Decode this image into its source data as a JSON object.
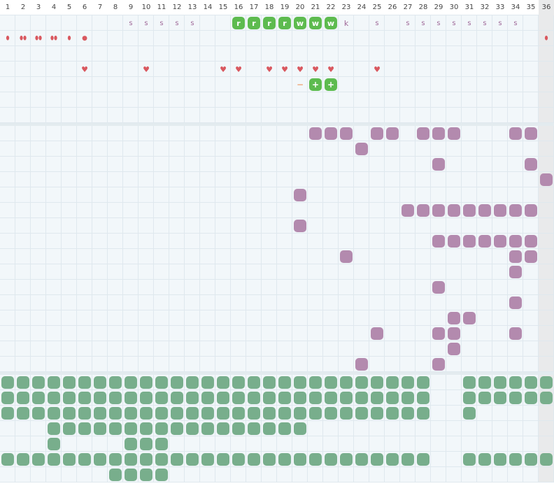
{
  "columns": [
    "1",
    "2",
    "3",
    "4",
    "5",
    "6",
    "7",
    "8",
    "9",
    "10",
    "11",
    "12",
    "13",
    "14",
    "15",
    "16",
    "17",
    "18",
    "19",
    "20",
    "21",
    "22",
    "23",
    "24",
    "25",
    "26",
    "27",
    "28",
    "29",
    "30",
    "31",
    "32",
    "33",
    "34",
    "35",
    "36"
  ],
  "colors": {
    "background": "#f2f7fa",
    "grid_line": "#dfe8ee",
    "header_bg": "#ffffff",
    "last_column_bg": "#e9eaeb",
    "separator": "#e3ebef",
    "red_symbol": "#d9585f",
    "green_tile": "#5dbb4f",
    "purple_blob": "#b38aae",
    "teal_blob": "#78ae8c",
    "s_letter": "#a06a99"
  },
  "sections": [
    {
      "name": "symbols",
      "rows": [
        {
          "s": [
            9,
            10,
            11,
            12,
            13,
            25,
            27,
            28,
            29,
            30,
            31,
            32,
            33,
            34
          ],
          "r": [
            16,
            17,
            18,
            19
          ],
          "w": [
            20,
            21,
            22
          ],
          "k": [
            23
          ]
        },
        {
          "drops": {
            "1": 1,
            "2": 3,
            "3": 3,
            "4": 3,
            "5": 1,
            "36": 1
          },
          "dot": [
            6
          ]
        },
        {},
        {
          "heart": [
            6,
            10,
            15,
            16,
            18,
            19,
            20,
            21,
            22,
            25
          ]
        },
        {
          "minus": [
            20
          ],
          "plus": [
            21,
            22
          ]
        },
        {},
        {}
      ]
    },
    {
      "name": "purple",
      "rows": [
        [
          21,
          22,
          23,
          25,
          26,
          28,
          29,
          30,
          34,
          35
        ],
        [
          24
        ],
        [
          29,
          35
        ],
        [
          36
        ],
        [
          20
        ],
        [
          27,
          28,
          29,
          30,
          31,
          32,
          33,
          34,
          35
        ],
        [
          20
        ],
        [
          29,
          30,
          31,
          32,
          33,
          34,
          35
        ],
        [
          23,
          34,
          35
        ],
        [
          34
        ],
        [
          29
        ],
        [
          34
        ],
        [
          30,
          31
        ],
        [
          25,
          29,
          30,
          34
        ],
        [
          30
        ],
        [
          24,
          29
        ]
      ]
    },
    {
      "name": "teal",
      "rows": [
        [
          1,
          2,
          3,
          4,
          5,
          6,
          7,
          8,
          9,
          10,
          11,
          12,
          13,
          14,
          15,
          16,
          17,
          18,
          19,
          20,
          21,
          22,
          23,
          24,
          25,
          26,
          27,
          28,
          31,
          32,
          33,
          34,
          35,
          36
        ],
        [
          1,
          2,
          3,
          4,
          5,
          6,
          7,
          8,
          9,
          10,
          11,
          12,
          13,
          14,
          15,
          16,
          17,
          18,
          19,
          20,
          21,
          22,
          23,
          24,
          25,
          26,
          27,
          28,
          31,
          32,
          33,
          34,
          35,
          36
        ],
        [
          1,
          2,
          3,
          4,
          5,
          6,
          7,
          8,
          9,
          10,
          11,
          12,
          13,
          14,
          15,
          16,
          17,
          18,
          19,
          20,
          21,
          22,
          23,
          24,
          25,
          26,
          27,
          28,
          31
        ],
        [
          4,
          5,
          6,
          7,
          8,
          9,
          10,
          11,
          12,
          13,
          14,
          15,
          16,
          17,
          18,
          19,
          20
        ],
        [
          4,
          9,
          10,
          11
        ],
        [
          1,
          2,
          3,
          4,
          5,
          6,
          7,
          8,
          9,
          10,
          11,
          12,
          13,
          14,
          15,
          16,
          17,
          18,
          19,
          20,
          21,
          22,
          23,
          24,
          25,
          26,
          27,
          28,
          31,
          32,
          33,
          34,
          35,
          36
        ],
        [
          8,
          9,
          10,
          11
        ]
      ]
    }
  ]
}
